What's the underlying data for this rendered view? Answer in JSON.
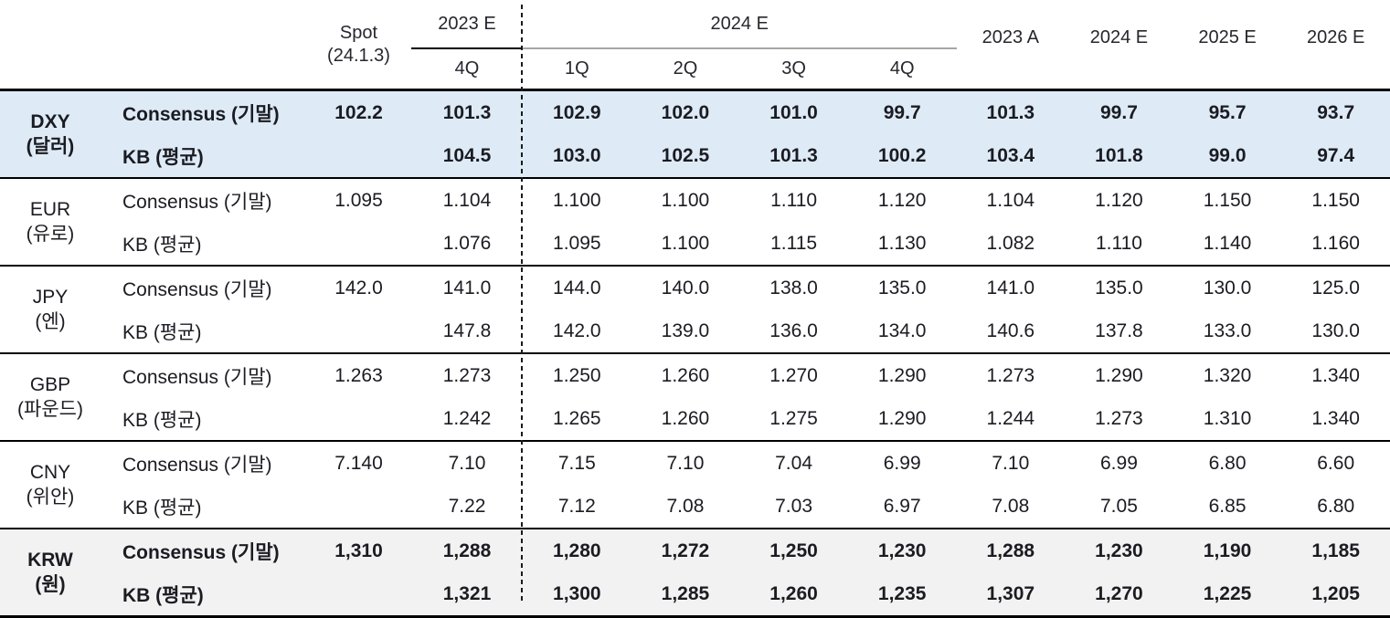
{
  "table": {
    "header": {
      "spot_line1": "Spot",
      "spot_line2": "(24.1.3)",
      "col_2023e": "2023 E",
      "col_2023e_sub": "4Q",
      "col_2024e_group": "2024 E",
      "quarters": [
        "1Q",
        "2Q",
        "3Q",
        "4Q"
      ],
      "annuals": [
        "2023 A",
        "2024 E",
        "2025 E",
        "2026 E"
      ]
    },
    "groups": [
      {
        "code": "DXY",
        "name_kr": "(달러)",
        "highlight": "blue",
        "bold": true,
        "rows": [
          {
            "label": "Consensus (기말)",
            "values": [
              "102.2",
              "101.3",
              "102.9",
              "102.0",
              "101.0",
              "99.7",
              "101.3",
              "99.7",
              "95.7",
              "93.7"
            ]
          },
          {
            "label": "KB (평균)",
            "values": [
              "",
              "104.5",
              "103.0",
              "102.5",
              "101.3",
              "100.2",
              "103.4",
              "101.8",
              "99.0",
              "97.4"
            ]
          }
        ]
      },
      {
        "code": "EUR",
        "name_kr": "(유로)",
        "highlight": "",
        "bold": false,
        "rows": [
          {
            "label": "Consensus (기말)",
            "values": [
              "1.095",
              "1.104",
              "1.100",
              "1.100",
              "1.110",
              "1.120",
              "1.104",
              "1.120",
              "1.150",
              "1.150"
            ]
          },
          {
            "label": "KB (평균)",
            "values": [
              "",
              "1.076",
              "1.095",
              "1.100",
              "1.115",
              "1.130",
              "1.082",
              "1.110",
              "1.140",
              "1.160"
            ]
          }
        ]
      },
      {
        "code": "JPY",
        "name_kr": "(엔)",
        "highlight": "",
        "bold": false,
        "rows": [
          {
            "label": "Consensus (기말)",
            "values": [
              "142.0",
              "141.0",
              "144.0",
              "140.0",
              "138.0",
              "135.0",
              "141.0",
              "135.0",
              "130.0",
              "125.0"
            ]
          },
          {
            "label": "KB (평균)",
            "values": [
              "",
              "147.8",
              "142.0",
              "139.0",
              "136.0",
              "134.0",
              "140.6",
              "137.8",
              "133.0",
              "130.0"
            ]
          }
        ]
      },
      {
        "code": "GBP",
        "name_kr": "(파운드)",
        "highlight": "",
        "bold": false,
        "rows": [
          {
            "label": "Consensus (기말)",
            "values": [
              "1.263",
              "1.273",
              "1.250",
              "1.260",
              "1.270",
              "1.290",
              "1.273",
              "1.290",
              "1.320",
              "1.340"
            ]
          },
          {
            "label": "KB (평균)",
            "values": [
              "",
              "1.242",
              "1.265",
              "1.260",
              "1.275",
              "1.290",
              "1.244",
              "1.273",
              "1.310",
              "1.340"
            ]
          }
        ]
      },
      {
        "code": "CNY",
        "name_kr": "(위안)",
        "highlight": "",
        "bold": false,
        "rows": [
          {
            "label": "Consensus (기말)",
            "values": [
              "7.140",
              "7.10",
              "7.15",
              "7.10",
              "7.04",
              "6.99",
              "7.10",
              "6.99",
              "6.80",
              "6.60"
            ]
          },
          {
            "label": "KB (평균)",
            "values": [
              "",
              "7.22",
              "7.12",
              "7.08",
              "7.03",
              "6.97",
              "7.08",
              "7.05",
              "6.85",
              "6.80"
            ]
          }
        ]
      },
      {
        "code": "KRW",
        "name_kr": "(원)",
        "highlight": "gray",
        "bold": true,
        "rows": [
          {
            "label": "Consensus (기말)",
            "values": [
              "1,310",
              "1,288",
              "1,280",
              "1,272",
              "1,250",
              "1,230",
              "1,288",
              "1,230",
              "1,190",
              "1,185"
            ]
          },
          {
            "label": "KB (평균)",
            "values": [
              "",
              "1,321",
              "1,300",
              "1,285",
              "1,260",
              "1,235",
              "1,307",
              "1,270",
              "1,225",
              "1,205"
            ]
          }
        ]
      }
    ]
  },
  "colors": {
    "highlight_blue": "#deebf7",
    "highlight_gray": "#f2f2f2",
    "rule_black": "#000000",
    "rule_gray": "#a6a6a6",
    "text": "#1b1b22"
  }
}
